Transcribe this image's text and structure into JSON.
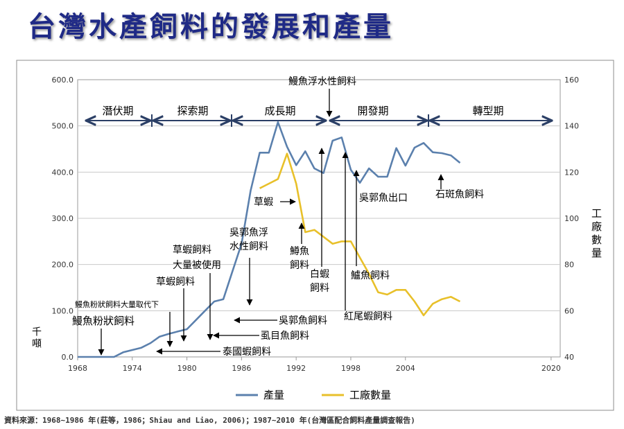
{
  "title": "台灣水產飼料的發展和產量",
  "source": "資料來源：1968~1986 年(莊等，1986；Shiau and Liao, 2006)；1987~2010 年(台灣區配合飼料產量調查報告)",
  "colors": {
    "production": "#5b80ad",
    "factories": "#e8c02a",
    "arrow": "#000000",
    "period_arrow": "#2b3f66"
  },
  "chart_data": {
    "type": "line",
    "xlabel": "",
    "ylabel_left": "千噸",
    "ylabel_right": "工廠數量",
    "xlim": [
      1968,
      2021
    ],
    "xticks": [
      "1968",
      "1974",
      "1980",
      "1986",
      "1992",
      "1998",
      "2004",
      "2020"
    ],
    "xtick_values": [
      1968,
      1974,
      1980,
      1986,
      1992,
      1998,
      2004,
      2020
    ],
    "ylim_left": [
      0,
      600
    ],
    "yticks_left": [
      "0.0",
      "100.0",
      "200.0",
      "300.0",
      "400.0",
      "500.0",
      "600.0"
    ],
    "ylim_right": [
      40,
      160
    ],
    "yticks_right": [
      "40",
      "60",
      "80",
      "100",
      "120",
      "140",
      "160"
    ],
    "legend": "bottom",
    "series": [
      {
        "name": "產量",
        "axis": "left",
        "x": [
          1968,
          1969,
          1970,
          1971,
          1972,
          1973,
          1974,
          1975,
          1976,
          1977,
          1978,
          1979,
          1980,
          1981,
          1982,
          1983,
          1984,
          1985,
          1986,
          1987,
          1988,
          1989,
          1990,
          1991,
          1992,
          1993,
          1994,
          1995,
          1996,
          1997,
          1998,
          1999,
          2000,
          2001,
          2002,
          2003,
          2004,
          2005,
          2006,
          2007,
          2008,
          2009,
          2010
        ],
        "y": [
          0,
          0,
          0,
          0,
          0,
          10,
          15,
          20,
          30,
          44,
          50,
          55,
          60,
          80,
          100,
          120,
          125,
          185,
          245,
          360,
          442,
          442,
          508,
          455,
          415,
          445,
          408,
          398,
          468,
          475,
          405,
          377,
          408,
          390,
          390,
          452,
          414,
          453,
          463,
          443,
          441,
          436,
          420
        ]
      },
      {
        "name": "工廠數量",
        "axis": "right",
        "x": [
          1988,
          1989,
          1990,
          1991,
          1992,
          1993,
          1994,
          1995,
          1996,
          1997,
          1998,
          1999,
          2000,
          2001,
          2002,
          2003,
          2004,
          2005,
          2006,
          2007,
          2008,
          2009,
          2010
        ],
        "y": [
          113,
          115,
          117,
          128,
          115,
          94,
          95,
          92,
          89,
          90,
          90,
          83,
          76,
          68,
          67,
          69,
          69,
          64,
          58,
          63,
          65,
          66,
          64
        ]
      }
    ],
    "period_labels": [
      "潛伏期",
      "探索期",
      "成長期",
      "開發期",
      "轉型期"
    ],
    "annotations": [
      {
        "text": "鰻魚浮水性飼料"
      },
      {
        "text": "草蝦"
      },
      {
        "text": "吳郭魚浮"
      },
      {
        "text": "水性飼料"
      },
      {
        "text": "草蝦飼料"
      },
      {
        "text": "大量被使用"
      },
      {
        "text": "草蝦飼料"
      },
      {
        "text": "鰻魚粉狀飼料大量取代下"
      },
      {
        "text": "鰻魚粉狀飼料"
      },
      {
        "text": "鱒魚"
      },
      {
        "text": "飼料"
      },
      {
        "text": "白蝦"
      },
      {
        "text": "飼料"
      },
      {
        "text": "吳郭魚出口"
      },
      {
        "text": "石斑魚飼料"
      },
      {
        "text": "鱸魚飼料"
      },
      {
        "text": "紅尾蝦飼料"
      },
      {
        "text": "吳郭魚飼料"
      },
      {
        "text": "虱目魚飼料"
      },
      {
        "text": "泰國蝦飼料"
      }
    ]
  }
}
